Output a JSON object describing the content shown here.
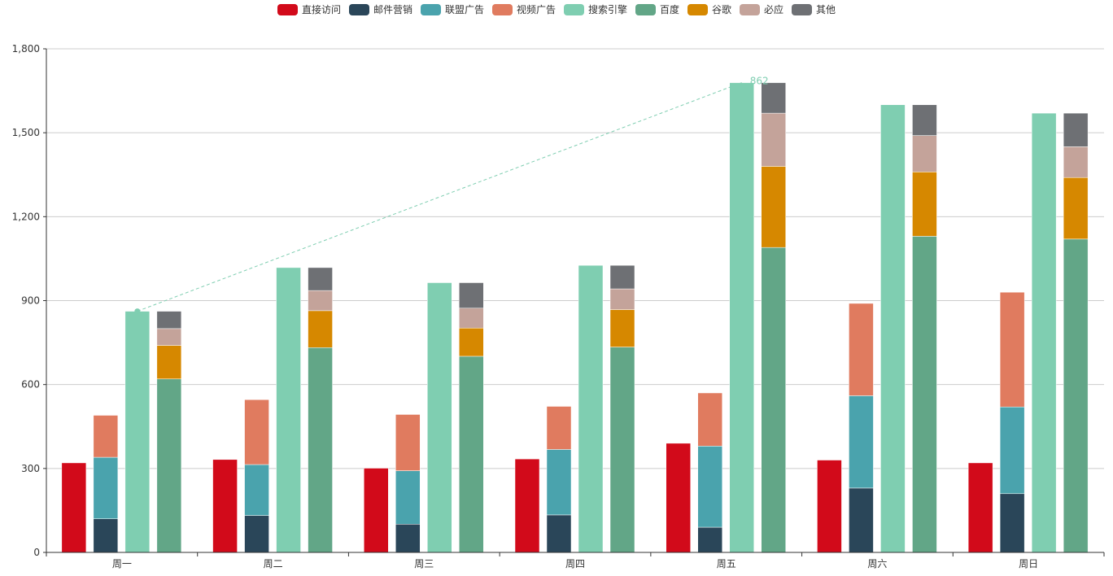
{
  "chart_data": {
    "type": "bar",
    "categories": [
      "周一",
      "周二",
      "周三",
      "周四",
      "周五",
      "周六",
      "周日"
    ],
    "ylim": [
      0,
      1800
    ],
    "yticks": [
      0,
      300,
      600,
      900,
      1200,
      1500,
      1800
    ],
    "ytick_labels": [
      "0",
      "300",
      "600",
      "900",
      "1,200",
      "1,500",
      "1,800"
    ],
    "legend": [
      "直接访问",
      "邮件营销",
      "联盟广告",
      "视频广告",
      "搜索引擎",
      "百度",
      "谷歌",
      "必应",
      "其他"
    ],
    "series": [
      {
        "name": "直接访问",
        "stack": "direct",
        "color": "#d20a1a",
        "values": [
          320,
          332,
          301,
          334,
          390,
          330,
          320
        ]
      },
      {
        "name": "邮件营销",
        "stack": "ads",
        "color": "#2a4659",
        "values": [
          120,
          132,
          101,
          134,
          90,
          230,
          210
        ]
      },
      {
        "name": "联盟广告",
        "stack": "ads",
        "color": "#4aa3ad",
        "values": [
          220,
          182,
          191,
          234,
          290,
          330,
          310
        ]
      },
      {
        "name": "视频广告",
        "stack": "ads",
        "color": "#e07b5f",
        "values": [
          150,
          232,
          201,
          154,
          190,
          330,
          410
        ]
      },
      {
        "name": "搜索引擎",
        "stack": "search",
        "color": "#7fceb1",
        "values": [
          862,
          1018,
          964,
          1026,
          1679,
          1600,
          1570
        ]
      },
      {
        "name": "百度",
        "stack": "engines",
        "color": "#62a687",
        "values": [
          620,
          732,
          701,
          734,
          1090,
          1130,
          1120
        ]
      },
      {
        "name": "谷歌",
        "stack": "engines",
        "color": "#d68800",
        "values": [
          120,
          132,
          101,
          134,
          290,
          230,
          220
        ]
      },
      {
        "name": "必应",
        "stack": "engines",
        "color": "#c4a39a",
        "values": [
          60,
          72,
          71,
          74,
          190,
          130,
          110
        ]
      },
      {
        "name": "其他",
        "stack": "engines",
        "color": "#6e7074",
        "values": [
          62,
          82,
          91,
          84,
          109,
          110,
          120
        ]
      }
    ],
    "annotation": {
      "type": "markLine",
      "series": "搜索引擎",
      "from": {
        "category": "周一",
        "value": 862
      },
      "to": {
        "category": "周五",
        "value": 1679
      },
      "label": "862"
    }
  }
}
